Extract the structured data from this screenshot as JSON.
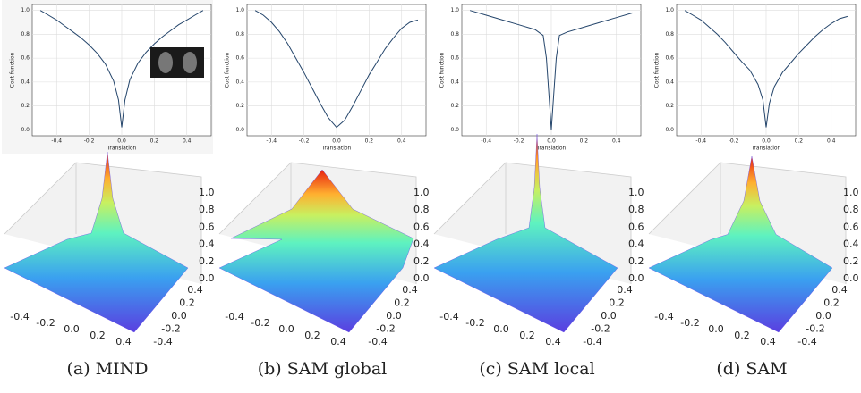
{
  "chart_data": [
    {
      "type": "line",
      "caption": "(a) MIND",
      "xlabel": "Translation",
      "ylabel": "Cost function",
      "color": "#24456b",
      "background": "#f5f5f5",
      "grid": true,
      "x": [
        -0.5,
        -0.45,
        -0.4,
        -0.35,
        -0.3,
        -0.25,
        -0.2,
        -0.15,
        -0.1,
        -0.05,
        -0.02,
        0,
        0.02,
        0.05,
        0.1,
        0.15,
        0.2,
        0.25,
        0.3,
        0.35,
        0.4,
        0.45,
        0.5
      ],
      "values": [
        1.0,
        0.96,
        0.92,
        0.87,
        0.82,
        0.77,
        0.71,
        0.64,
        0.55,
        0.41,
        0.25,
        0.02,
        0.25,
        0.42,
        0.56,
        0.65,
        0.72,
        0.78,
        0.83,
        0.88,
        0.92,
        0.96,
        1.0
      ],
      "xlim": [
        -0.55,
        0.55
      ],
      "ylim": [
        -0.05,
        1.05
      ],
      "xticks": [
        -0.4,
        -0.2,
        {
          "value": 0,
          "label": "0.0"
        },
        0.2,
        0.4
      ],
      "yticks": [
        {
          "value": 0,
          "label": "0.0"
        },
        0.2,
        0.4,
        0.6,
        0.8,
        {
          "value": 1,
          "label": "1.0"
        }
      ],
      "surface_zticks": [
        {
          "value": 0,
          "label": "0.0"
        },
        0.2,
        0.4,
        0.6,
        0.8,
        {
          "value": 1,
          "label": "1.0"
        }
      ],
      "surface_xticks": [
        -0.4,
        -0.2,
        {
          "value": 0,
          "label": "0.0"
        },
        0.2,
        0.4
      ],
      "surface_yticks": [
        -0.4,
        -0.2,
        {
          "value": 0,
          "label": "0.0"
        },
        0.2,
        0.4
      ]
    },
    {
      "type": "line",
      "caption": "(b) SAM global",
      "xlabel": "Translation",
      "ylabel": "Cost function",
      "color": "#24456b",
      "background": "#ffffff",
      "grid": true,
      "x": [
        -0.5,
        -0.45,
        -0.4,
        -0.35,
        -0.3,
        -0.25,
        -0.2,
        -0.15,
        -0.1,
        -0.05,
        0,
        0.05,
        0.1,
        0.15,
        0.2,
        0.25,
        0.3,
        0.35,
        0.4,
        0.45,
        0.5
      ],
      "values": [
        1.0,
        0.96,
        0.9,
        0.82,
        0.72,
        0.6,
        0.48,
        0.35,
        0.22,
        0.1,
        0.02,
        0.08,
        0.2,
        0.33,
        0.46,
        0.57,
        0.68,
        0.77,
        0.85,
        0.9,
        0.92
      ],
      "xlim": [
        -0.55,
        0.55
      ],
      "ylim": [
        -0.05,
        1.05
      ],
      "xticks": [
        -0.4,
        -0.2,
        {
          "value": 0,
          "label": "0.0"
        },
        0.2,
        0.4
      ],
      "yticks": [
        {
          "value": 0,
          "label": "0.0"
        },
        0.2,
        0.4,
        0.6,
        0.8,
        {
          "value": 1,
          "label": "1.0"
        }
      ],
      "surface_zticks": [
        {
          "value": 0,
          "label": "0.0"
        },
        0.2,
        0.4,
        0.6,
        0.8,
        {
          "value": 1,
          "label": "1.0"
        }
      ],
      "surface_xticks": [
        -0.4,
        -0.2,
        {
          "value": 0,
          "label": "0.0"
        },
        0.2,
        0.4
      ],
      "surface_yticks": [
        -0.4,
        -0.2,
        {
          "value": 0,
          "label": "0.0"
        },
        0.2,
        0.4
      ]
    },
    {
      "type": "line",
      "caption": "(c) SAM local",
      "xlabel": "Translation",
      "ylabel": "Cost function",
      "color": "#24456b",
      "background": "#ffffff",
      "grid": true,
      "x": [
        -0.5,
        -0.4,
        -0.3,
        -0.2,
        -0.1,
        -0.05,
        -0.03,
        -0.01,
        0,
        0.01,
        0.03,
        0.05,
        0.1,
        0.2,
        0.3,
        0.4,
        0.5
      ],
      "values": [
        1.0,
        0.96,
        0.92,
        0.88,
        0.84,
        0.79,
        0.6,
        0.2,
        0.0,
        0.2,
        0.6,
        0.79,
        0.82,
        0.86,
        0.9,
        0.94,
        0.98
      ],
      "xlim": [
        -0.55,
        0.55
      ],
      "ylim": [
        -0.05,
        1.05
      ],
      "xticks": [
        -0.4,
        -0.2,
        {
          "value": 0,
          "label": "0.0"
        },
        0.2,
        0.4
      ],
      "yticks": [
        {
          "value": 0,
          "label": "0.0"
        },
        0.2,
        0.4,
        0.6,
        0.8,
        {
          "value": 1,
          "label": "1.0"
        }
      ],
      "surface_zticks": [
        {
          "value": 0,
          "label": "0.0"
        },
        0.2,
        0.4,
        0.6,
        0.8,
        {
          "value": 1,
          "label": "1.0"
        }
      ],
      "surface_xticks": [
        -0.4,
        -0.2,
        {
          "value": 0,
          "label": "0.0"
        },
        0.2,
        0.4
      ],
      "surface_yticks": [
        -0.4,
        -0.2,
        {
          "value": 0,
          "label": "0.0"
        },
        0.2,
        0.4
      ]
    },
    {
      "type": "line",
      "caption": "(d) SAM",
      "xlabel": "Translation",
      "ylabel": "Cost function",
      "color": "#24456b",
      "background": "#ffffff",
      "grid": true,
      "x": [
        -0.5,
        -0.45,
        -0.4,
        -0.35,
        -0.3,
        -0.25,
        -0.2,
        -0.15,
        -0.1,
        -0.05,
        -0.02,
        0,
        0.02,
        0.05,
        0.1,
        0.15,
        0.2,
        0.25,
        0.3,
        0.35,
        0.4,
        0.45,
        0.5
      ],
      "values": [
        1.0,
        0.96,
        0.92,
        0.86,
        0.8,
        0.73,
        0.65,
        0.57,
        0.5,
        0.38,
        0.25,
        0.02,
        0.22,
        0.36,
        0.48,
        0.56,
        0.64,
        0.71,
        0.78,
        0.84,
        0.89,
        0.93,
        0.95
      ],
      "xlim": [
        -0.55,
        0.55
      ],
      "ylim": [
        -0.05,
        1.05
      ],
      "xticks": [
        -0.4,
        -0.2,
        {
          "value": 0,
          "label": "0.0"
        },
        0.2,
        0.4
      ],
      "yticks": [
        {
          "value": 0,
          "label": "0.0"
        },
        0.2,
        0.4,
        0.6,
        0.8,
        {
          "value": 1,
          "label": "1.0"
        }
      ],
      "surface_zticks": [
        {
          "value": 0,
          "label": "0.0"
        },
        0.2,
        0.4,
        0.6,
        0.8,
        {
          "value": 1,
          "label": "1.0"
        }
      ],
      "surface_xticks": [
        -0.4,
        -0.2,
        {
          "value": 0,
          "label": "0.0"
        },
        0.2,
        0.4
      ],
      "surface_yticks": [
        -0.4,
        -0.2,
        {
          "value": 0,
          "label": "0.0"
        },
        0.2,
        0.4
      ]
    }
  ]
}
